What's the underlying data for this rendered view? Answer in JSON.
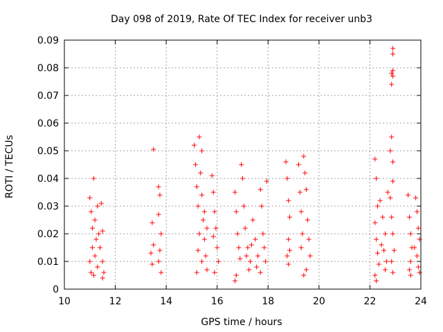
{
  "chart_data": {
    "type": "scatter",
    "title": "Day 098 of 2019, Rate Of TEC Index for receiver unb3",
    "xlabel": "GPS time / hours",
    "ylabel": "ROTI / TECUs",
    "xlim": [
      10,
      24
    ],
    "ylim": [
      0,
      0.09
    ],
    "x_ticks": [
      "10",
      "12",
      "14",
      "16",
      "18",
      "20",
      "22",
      "24"
    ],
    "y_ticks": [
      "0",
      "0.01",
      "0.02",
      "0.03",
      "0.04",
      "0.05",
      "0.06",
      "0.07",
      "0.08",
      "0.09"
    ],
    "grid": true,
    "marker": "+",
    "color": "#ff0000",
    "series": [
      {
        "name": "ROTI",
        "points": [
          [
            11.0,
            0.033
          ],
          [
            11.05,
            0.028
          ],
          [
            11.1,
            0.022
          ],
          [
            11.1,
            0.015
          ],
          [
            11.0,
            0.01
          ],
          [
            11.05,
            0.006
          ],
          [
            11.15,
            0.04
          ],
          [
            11.2,
            0.025
          ],
          [
            11.25,
            0.018
          ],
          [
            11.2,
            0.012
          ],
          [
            11.3,
            0.03
          ],
          [
            11.3,
            0.008
          ],
          [
            11.35,
            0.02
          ],
          [
            11.4,
            0.015
          ],
          [
            11.5,
            0.021
          ],
          [
            11.5,
            0.01
          ],
          [
            11.55,
            0.006
          ],
          [
            11.5,
            0.004
          ],
          [
            11.45,
            0.031
          ],
          [
            11.15,
            0.005
          ],
          [
            13.4,
            0.013
          ],
          [
            13.45,
            0.024
          ],
          [
            13.5,
            0.016
          ],
          [
            13.45,
            0.009
          ],
          [
            13.5,
            0.0505
          ],
          [
            13.7,
            0.037
          ],
          [
            13.75,
            0.034
          ],
          [
            13.7,
            0.027
          ],
          [
            13.8,
            0.02
          ],
          [
            13.75,
            0.014
          ],
          [
            13.7,
            0.01
          ],
          [
            13.8,
            0.006
          ],
          [
            15.1,
            0.052
          ],
          [
            15.15,
            0.045
          ],
          [
            15.2,
            0.037
          ],
          [
            15.25,
            0.03
          ],
          [
            15.3,
            0.055
          ],
          [
            15.4,
            0.05
          ],
          [
            15.35,
            0.042
          ],
          [
            15.4,
            0.034
          ],
          [
            15.45,
            0.025
          ],
          [
            15.5,
            0.018
          ],
          [
            15.55,
            0.012
          ],
          [
            15.6,
            0.007
          ],
          [
            15.2,
            0.006
          ],
          [
            15.3,
            0.02
          ],
          [
            15.4,
            0.01
          ],
          [
            15.5,
            0.028
          ],
          [
            15.6,
            0.022
          ],
          [
            15.25,
            0.014
          ],
          [
            15.8,
            0.041
          ],
          [
            15.85,
            0.035
          ],
          [
            15.9,
            0.028
          ],
          [
            15.95,
            0.022
          ],
          [
            16.0,
            0.015
          ],
          [
            16.05,
            0.01
          ],
          [
            15.9,
            0.006
          ],
          [
            15.85,
            0.019
          ],
          [
            16.7,
            0.035
          ],
          [
            16.75,
            0.028
          ],
          [
            16.8,
            0.02
          ],
          [
            16.85,
            0.015
          ],
          [
            16.9,
            0.011
          ],
          [
            16.75,
            0.005
          ],
          [
            16.7,
            0.003
          ],
          [
            16.95,
            0.045
          ],
          [
            17.0,
            0.04
          ],
          [
            17.05,
            0.03
          ],
          [
            17.1,
            0.022
          ],
          [
            17.2,
            0.015
          ],
          [
            17.3,
            0.01
          ],
          [
            17.25,
            0.007
          ],
          [
            17.4,
            0.025
          ],
          [
            17.5,
            0.018
          ],
          [
            17.6,
            0.012
          ],
          [
            17.55,
            0.008
          ],
          [
            17.7,
            0.036
          ],
          [
            17.75,
            0.03
          ],
          [
            17.8,
            0.02
          ],
          [
            17.85,
            0.015
          ],
          [
            17.9,
            0.01
          ],
          [
            17.95,
            0.039
          ],
          [
            17.7,
            0.006
          ],
          [
            17.35,
            0.016
          ],
          [
            17.15,
            0.012
          ],
          [
            18.7,
            0.046
          ],
          [
            18.75,
            0.04
          ],
          [
            18.8,
            0.032
          ],
          [
            18.85,
            0.026
          ],
          [
            18.8,
            0.018
          ],
          [
            18.75,
            0.012
          ],
          [
            18.8,
            0.009
          ],
          [
            18.85,
            0.014
          ],
          [
            19.2,
            0.045
          ],
          [
            19.25,
            0.035
          ],
          [
            19.3,
            0.028
          ],
          [
            19.35,
            0.02
          ],
          [
            19.4,
            0.048
          ],
          [
            19.45,
            0.042
          ],
          [
            19.5,
            0.036
          ],
          [
            19.55,
            0.025
          ],
          [
            19.6,
            0.018
          ],
          [
            19.65,
            0.012
          ],
          [
            19.5,
            0.007
          ],
          [
            19.4,
            0.005
          ],
          [
            19.3,
            0.015
          ],
          [
            22.2,
            0.047
          ],
          [
            22.25,
            0.04
          ],
          [
            22.3,
            0.03
          ],
          [
            22.2,
            0.024
          ],
          [
            22.25,
            0.018
          ],
          [
            22.3,
            0.013
          ],
          [
            22.35,
            0.009
          ],
          [
            22.2,
            0.005
          ],
          [
            22.25,
            0.003
          ],
          [
            22.4,
            0.032
          ],
          [
            22.5,
            0.026
          ],
          [
            22.6,
            0.02
          ],
          [
            22.55,
            0.014
          ],
          [
            22.65,
            0.01
          ],
          [
            22.7,
            0.035
          ],
          [
            22.6,
            0.007
          ],
          [
            22.45,
            0.016
          ],
          [
            22.8,
            0.05
          ],
          [
            22.85,
            0.055
          ],
          [
            22.9,
            0.046
          ],
          [
            22.9,
            0.039
          ],
          [
            22.8,
            0.033
          ],
          [
            22.85,
            0.026
          ],
          [
            22.9,
            0.02
          ],
          [
            22.95,
            0.014
          ],
          [
            22.85,
            0.01
          ],
          [
            22.9,
            0.006
          ],
          [
            22.85,
            0.074
          ],
          [
            22.9,
            0.077
          ],
          [
            22.85,
            0.078
          ],
          [
            22.9,
            0.079
          ],
          [
            22.9,
            0.085
          ],
          [
            22.9,
            0.087
          ],
          [
            23.5,
            0.034
          ],
          [
            23.55,
            0.026
          ],
          [
            23.6,
            0.02
          ],
          [
            23.65,
            0.015
          ],
          [
            23.6,
            0.01
          ],
          [
            23.55,
            0.007
          ],
          [
            23.6,
            0.005
          ],
          [
            23.8,
            0.033
          ],
          [
            23.85,
            0.028
          ],
          [
            23.9,
            0.022
          ],
          [
            23.95,
            0.018
          ],
          [
            23.85,
            0.012
          ],
          [
            23.9,
            0.008
          ],
          [
            23.95,
            0.006
          ],
          [
            23.75,
            0.015
          ]
        ]
      }
    ]
  }
}
